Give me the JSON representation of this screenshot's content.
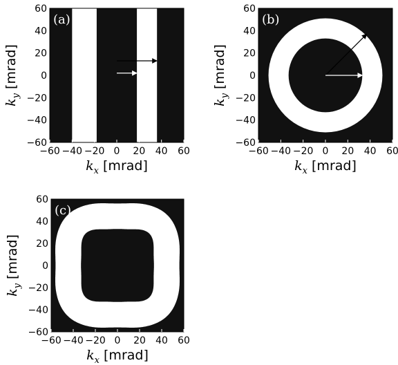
{
  "chart_data": [
    {
      "type": "heatmap",
      "panel_label": "(a)",
      "shape": "vertical-bands",
      "colors": {
        "background": "#111111",
        "region": "#ffffff",
        "arrows": [
          "#000000",
          "#ffffff"
        ]
      },
      "bands_kx": [
        [
          -40,
          -18
        ],
        [
          18,
          36
        ]
      ],
      "arrows": [
        {
          "from": [
            0,
            13
          ],
          "to": [
            36,
            13
          ],
          "color": "#000000"
        },
        {
          "from": [
            0,
            2
          ],
          "to": [
            18,
            2
          ],
          "color": "#ffffff"
        }
      ],
      "xlabel_var": "k",
      "xlabel_sub": "x",
      "xlabel_unit": "[mrad]",
      "ylabel_var": "k",
      "ylabel_sub": "y",
      "ylabel_unit": "[mrad]",
      "xlim": [
        -60,
        60
      ],
      "ylim": [
        -60,
        60
      ],
      "xticks": [
        "−60",
        "−40",
        "−20",
        "0",
        "20",
        "40",
        "60"
      ],
      "yticks": [
        "−60",
        "−40",
        "−20",
        "0",
        "20",
        "40",
        "60"
      ],
      "grid": false
    },
    {
      "type": "heatmap",
      "panel_label": "(b)",
      "shape": "annulus",
      "colors": {
        "background": "#111111",
        "region": "#ffffff",
        "arrows": [
          "#000000",
          "#ffffff"
        ]
      },
      "inner_radius": 33,
      "outer_radius": 51,
      "arrows": [
        {
          "from": [
            0,
            0
          ],
          "to": [
            37,
            37
          ],
          "color": "#000000"
        },
        {
          "from": [
            0,
            0
          ],
          "to": [
            33,
            0
          ],
          "color": "#ffffff"
        }
      ],
      "xlabel_var": "k",
      "xlabel_sub": "x",
      "xlabel_unit": "[mrad]",
      "ylabel_var": "k",
      "ylabel_sub": "y",
      "ylabel_unit": "[mrad]",
      "xlim": [
        -60,
        60
      ],
      "ylim": [
        -60,
        60
      ],
      "xticks": [
        "−60",
        "−40",
        "−20",
        "0",
        "20",
        "40",
        "60"
      ],
      "yticks": [
        "−60",
        "−40",
        "−20",
        "0",
        "20",
        "40",
        "60"
      ],
      "grid": false
    },
    {
      "type": "heatmap",
      "panel_label": "(c)",
      "shape": "superellipse-ring",
      "colors": {
        "background": "#111111",
        "region": "#ffffff"
      },
      "outer_boundary": {
        "half_width": 56,
        "exponent": 4,
        "wave_amplitude": 2.5
      },
      "inner_boundary": {
        "half_width": 33,
        "exponent": 4,
        "wave_amplitude": -1.5
      },
      "xlabel_var": "k",
      "xlabel_sub": "x",
      "xlabel_unit": "[mrad]",
      "ylabel_var": "k",
      "ylabel_sub": "y",
      "ylabel_unit": "[mrad]",
      "xlim": [
        -60,
        60
      ],
      "ylim": [
        -60,
        60
      ],
      "xticks": [
        "−60",
        "−40",
        "−20",
        "0",
        "20",
        "40",
        "60"
      ],
      "yticks": [
        "−60",
        "−40",
        "−20",
        "0",
        "20",
        "40",
        "60"
      ],
      "grid": false
    }
  ]
}
